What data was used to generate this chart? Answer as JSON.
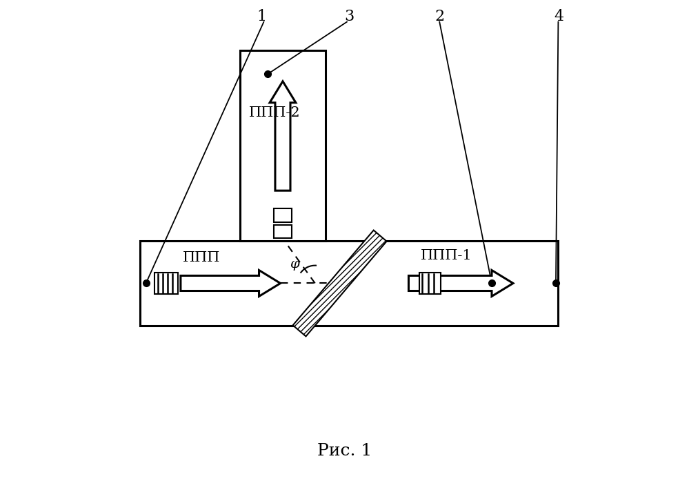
{
  "fig_width": 9.99,
  "fig_height": 6.97,
  "bg_color": "#ffffff",
  "title": "Рис. 1",
  "title_fontsize": 18,
  "label_1": "1",
  "label_2": "2",
  "label_3": "3",
  "label_4": "4",
  "text_ppp": "ППП",
  "text_ppp1": "ППП-1",
  "text_ppp2": "ППП-2",
  "text_phi": "φ",
  "line_color": "#000000"
}
